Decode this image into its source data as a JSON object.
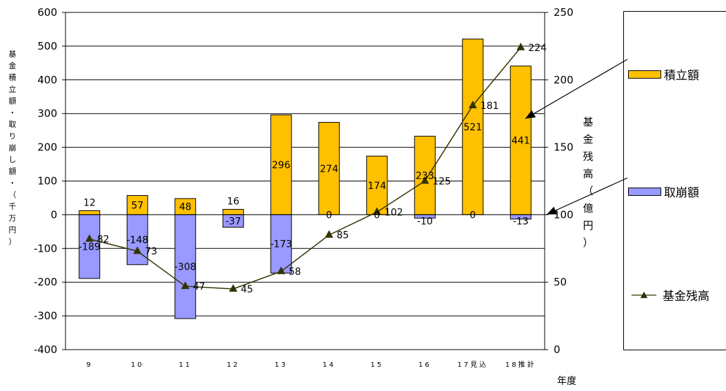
{
  "chart_data": {
    "type": "bar+line",
    "categories": [
      "9",
      "10",
      "11",
      "12",
      "13",
      "14",
      "15",
      "16",
      "17見込",
      "18推計"
    ],
    "series": [
      {
        "name": "積立額",
        "type": "bar",
        "axis": "left",
        "values": [
          12,
          57,
          48,
          16,
          296,
          274,
          174,
          233,
          521,
          441
        ],
        "labels": [
          "12",
          "57",
          "48",
          "16",
          "296",
          "274",
          "174",
          "233",
          "521",
          "441"
        ]
      },
      {
        "name": "取崩額",
        "type": "bar",
        "axis": "left",
        "values": [
          -189,
          -148,
          -308,
          -37,
          -173,
          0,
          0,
          -10,
          0,
          -13
        ],
        "labels": [
          "-189",
          "-148",
          "-308",
          "-37",
          "-173",
          "0",
          "0",
          "-10",
          "0",
          "-13"
        ]
      },
      {
        "name": "基金残高",
        "type": "line",
        "axis": "right",
        "values": [
          82,
          73,
          47,
          45,
          58,
          85,
          102,
          125,
          181,
          224
        ],
        "labels": [
          "82",
          "73",
          "47",
          "45",
          "58",
          "85",
          "102",
          "125",
          "181",
          "224"
        ]
      }
    ],
    "y_left": {
      "range": [
        -400,
        600
      ],
      "ticks": [
        "600",
        "500",
        "400",
        "300",
        "200",
        "100",
        "0",
        "-100",
        "-200",
        "-300",
        "-400"
      ],
      "label": "基金積立額・取り崩し額・（千万円）"
    },
    "y_right": {
      "range": [
        0,
        250
      ],
      "ticks": [
        "250",
        "200",
        "150",
        "100",
        "50",
        "0"
      ],
      "label": "基金残高（億円）"
    },
    "xlabel": "年度",
    "grid": true,
    "legend": "right",
    "colors": {
      "bar_positive": "#FFC000",
      "bar_negative": "#9999FF",
      "line": "#333300"
    }
  }
}
